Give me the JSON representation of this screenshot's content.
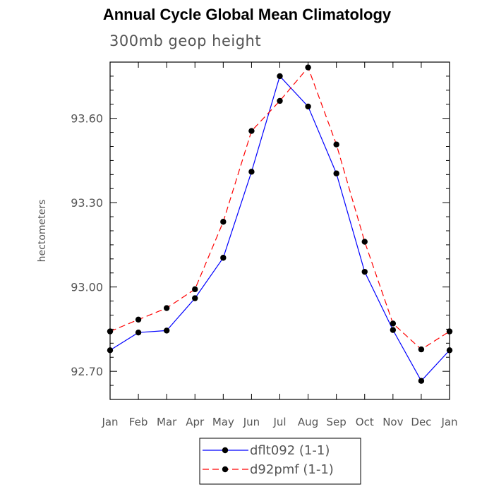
{
  "chart_data": {
    "type": "line",
    "title": "Annual Cycle Global Mean Climatology",
    "subtitle": "300mb geop height",
    "ylabel": "hectometers",
    "xlabel": "",
    "categories": [
      "Jan",
      "Feb",
      "Mar",
      "Apr",
      "May",
      "Jun",
      "Jul",
      "Aug",
      "Sep",
      "Oct",
      "Nov",
      "Dec",
      "Jan"
    ],
    "ylim": [
      92.6,
      93.8
    ],
    "yticks": [
      {
        "value": 92.7,
        "label": "92.70"
      },
      {
        "value": 93.0,
        "label": "93.00"
      },
      {
        "value": 93.3,
        "label": "93.30"
      },
      {
        "value": 93.6,
        "label": "93.60"
      }
    ],
    "series": [
      {
        "name": "dflt092 (1-1)",
        "color": "#0000ff",
        "dash": "solid",
        "values": [
          92.775,
          92.838,
          92.845,
          92.96,
          93.104,
          93.41,
          93.75,
          93.642,
          93.404,
          93.054,
          92.847,
          92.666,
          92.775
        ]
      },
      {
        "name": "d92pmf (1-1)",
        "color": "#ff0000",
        "dash": "dashed",
        "values": [
          92.842,
          92.884,
          92.925,
          92.992,
          93.232,
          93.555,
          93.662,
          93.781,
          93.507,
          93.161,
          92.87,
          92.778,
          92.842
        ]
      }
    ],
    "legend_position": "bottom-center",
    "grid": false
  }
}
